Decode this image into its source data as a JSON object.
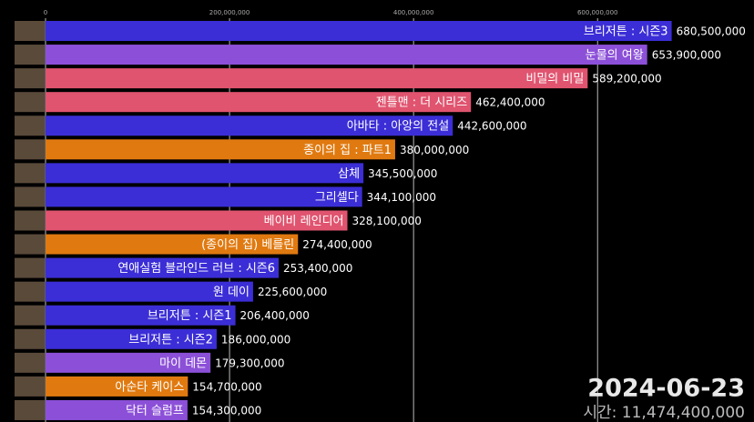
{
  "chart_data": {
    "type": "bar",
    "orientation": "horizontal",
    "categories": [
      "브리저튼 : 시즌3",
      "눈물의 여왕",
      "비밀의 비밀",
      "젠틀맨 : 더 시리즈",
      "아바타 : 아앙의 전설",
      "종이의 집 : 파트1",
      "삼체",
      "그리셀다",
      "베이비 레인디어",
      "(종이의 집) 베를린",
      "연애실험 블라인드 러브 : 시즌6",
      "원 데이",
      "브리저튼 : 시즌1",
      "브리저튼 : 시즌2",
      "마이 데몬",
      "아순타 케이스",
      "닥터 슬럼프"
    ],
    "values": [
      680500000,
      653900000,
      589200000,
      462400000,
      442600000,
      380000000,
      345500000,
      344100000,
      328100000,
      274400000,
      253400000,
      225600000,
      206400000,
      186000000,
      179300000,
      154700000,
      154300000
    ],
    "value_labels": [
      "680,500,000",
      "653,900,000",
      "589,200,000",
      "462,400,000",
      "442,600,000",
      "380,000,000",
      "345,500,000",
      "344,100,000",
      "328,100,000",
      "274,400,000",
      "253,400,000",
      "225,600,000",
      "206,400,000",
      "186,000,000",
      "179,300,000",
      "154,700,000",
      "154,300,000"
    ],
    "colors": [
      "#3b2ed6",
      "#8c50d8",
      "#e0546f",
      "#e0546f",
      "#3b2ed6",
      "#e07a10",
      "#3b2ed6",
      "#3b2ed6",
      "#e0546f",
      "#e07a10",
      "#3b2ed6",
      "#3b2ed6",
      "#3b2ed6",
      "#3b2ed6",
      "#8c50d8",
      "#e07a10",
      "#8c50d8"
    ],
    "xlim": [
      0,
      770000000
    ],
    "xticks": [
      0,
      {
        "value": 200000000,
        "label": "200,000,000"
      },
      {
        "value": 400000000,
        "label": "400,000,000"
      },
      {
        "value": 600000000,
        "label": "600,000,000"
      }
    ],
    "grid": true,
    "date": "2024-06-23",
    "total_label": "시간: 11,474,400,000"
  }
}
